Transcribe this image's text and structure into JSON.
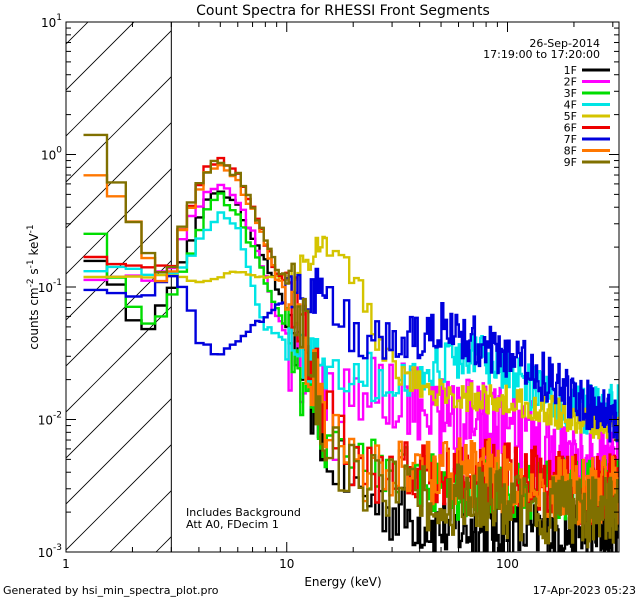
{
  "chart_data": {
    "type": "line",
    "title": "Count Spectra for RHESSI Front Segments",
    "xlabel": "Energy (keV)",
    "ylabel": "counts cm",
    "ylabel_sup1": "-2",
    "ylabel_mid": " s",
    "ylabel_sup2": "-1",
    "ylabel_end": " keV",
    "ylabel_sup3": "-1",
    "xscale": "log",
    "yscale": "log",
    "xlim": [
      1.0,
      320.0
    ],
    "ylim": [
      0.001,
      10.0
    ],
    "x_ticks": [
      {
        "value": 1,
        "label": "1"
      },
      {
        "value": 10,
        "label": "10"
      },
      {
        "value": 100,
        "label": "100"
      }
    ],
    "y_ticks": [
      {
        "value": 10,
        "base": "10",
        "exp": "1"
      },
      {
        "value": 1,
        "base": "10",
        "exp": "0"
      },
      {
        "value": 0.1,
        "base": "10",
        "exp": "-1"
      },
      {
        "value": 0.01,
        "base": "10",
        "exp": "-2"
      },
      {
        "value": 0.001,
        "base": "10",
        "exp": "-3"
      }
    ],
    "hatched_region_end_keV": 3.0,
    "date": "26-Sep-2014",
    "time_range": "17:19:00 to 17:20:00",
    "annotation_lines": [
      "Includes Background",
      "Att A0, FDecim 1"
    ],
    "series": [
      {
        "name": "1F",
        "color": "#000000",
        "anchors": [
          [
            1.2,
            0.28
          ],
          [
            1.4,
            0.15
          ],
          [
            1.7,
            0.1
          ],
          [
            2.2,
            0.04
          ],
          [
            2.6,
            0.07
          ],
          [
            3.2,
            0.12
          ],
          [
            3.8,
            0.25
          ],
          [
            4.5,
            0.5
          ],
          [
            5.0,
            0.55
          ],
          [
            6.0,
            0.4
          ],
          [
            7.5,
            0.2
          ],
          [
            9.0,
            0.1
          ],
          [
            10.5,
            0.05
          ],
          [
            12,
            0.02
          ],
          [
            15,
            0.006
          ],
          [
            20,
            0.003
          ],
          [
            30,
            0.002
          ],
          [
            50,
            0.0015
          ],
          [
            80,
            0.0015
          ],
          [
            120,
            0.0014
          ],
          [
            200,
            0.0014
          ],
          [
            300,
            0.0015
          ]
        ],
        "jitter": 0.25
      },
      {
        "name": "2F",
        "color": "#ff00ff",
        "anchors": [
          [
            1.2,
            0.12
          ],
          [
            1.6,
            0.12
          ],
          [
            2.2,
            0.12
          ],
          [
            3.0,
            0.12
          ],
          [
            3.5,
            0.3
          ],
          [
            4.5,
            0.55
          ],
          [
            5.0,
            0.6
          ],
          [
            6.0,
            0.45
          ],
          [
            7.0,
            0.25
          ],
          [
            8.5,
            0.08
          ],
          [
            10,
            0.04
          ],
          [
            12,
            0.02
          ],
          [
            16,
            0.01
          ],
          [
            25,
            0.02
          ],
          [
            40,
            0.012
          ],
          [
            60,
            0.01
          ],
          [
            100,
            0.008
          ],
          [
            150,
            0.006
          ],
          [
            200,
            0.004
          ],
          [
            300,
            0.004
          ]
        ],
        "jitter": 0.35
      },
      {
        "name": "3F",
        "color": "#00dd00",
        "anchors": [
          [
            1.2,
            0.33
          ],
          [
            1.4,
            0.25
          ],
          [
            1.8,
            0.1
          ],
          [
            2.2,
            0.06
          ],
          [
            2.6,
            0.05
          ],
          [
            3.0,
            0.08
          ],
          [
            3.8,
            0.2
          ],
          [
            4.5,
            0.45
          ],
          [
            5.0,
            0.5
          ],
          [
            6.0,
            0.35
          ],
          [
            7.5,
            0.15
          ],
          [
            9,
            0.07
          ],
          [
            10.5,
            0.04
          ],
          [
            12,
            0.015
          ],
          [
            15,
            0.006
          ],
          [
            20,
            0.005
          ],
          [
            30,
            0.004
          ],
          [
            50,
            0.003
          ],
          [
            80,
            0.003
          ],
          [
            150,
            0.003
          ],
          [
            300,
            0.003
          ]
        ],
        "jitter": 0.25
      },
      {
        "name": "4F",
        "color": "#00e5e5",
        "anchors": [
          [
            1.2,
            0.13
          ],
          [
            1.6,
            0.14
          ],
          [
            2.2,
            0.13
          ],
          [
            3.0,
            0.12
          ],
          [
            3.5,
            0.15
          ],
          [
            4.5,
            0.3
          ],
          [
            5.0,
            0.35
          ],
          [
            6.0,
            0.3
          ],
          [
            7.0,
            0.1
          ],
          [
            8.0,
            0.05
          ],
          [
            10,
            0.04
          ],
          [
            12,
            0.03
          ],
          [
            16,
            0.025
          ],
          [
            25,
            0.02
          ],
          [
            35,
            0.02
          ],
          [
            50,
            0.025
          ],
          [
            70,
            0.03
          ],
          [
            100,
            0.022
          ],
          [
            150,
            0.014
          ],
          [
            200,
            0.012
          ],
          [
            300,
            0.012
          ]
        ],
        "jitter": 0.2
      },
      {
        "name": "5F",
        "color": "#d4c400",
        "anchors": [
          [
            1.2,
            0.12
          ],
          [
            1.6,
            0.12
          ],
          [
            2.2,
            0.12
          ],
          [
            3.0,
            0.12
          ],
          [
            4.0,
            0.11
          ],
          [
            5.0,
            0.12
          ],
          [
            6.0,
            0.13
          ],
          [
            7.0,
            0.12
          ],
          [
            8.0,
            0.12
          ],
          [
            10,
            0.12
          ],
          [
            12,
            0.16
          ],
          [
            14,
            0.19
          ],
          [
            16,
            0.2
          ],
          [
            18,
            0.17
          ],
          [
            20,
            0.12
          ],
          [
            23,
            0.07
          ],
          [
            26,
            0.04
          ],
          [
            30,
            0.025
          ],
          [
            40,
            0.018
          ],
          [
            60,
            0.015
          ],
          [
            100,
            0.014
          ],
          [
            150,
            0.012
          ],
          [
            200,
            0.01
          ],
          [
            300,
            0.009
          ]
        ],
        "jitter": 0.12
      },
      {
        "name": "6F",
        "color": "#ee0000",
        "anchors": [
          [
            1.2,
            0.18
          ],
          [
            1.6,
            0.16
          ],
          [
            2.2,
            0.15
          ],
          [
            3.0,
            0.13
          ],
          [
            3.5,
            0.35
          ],
          [
            4.5,
            0.85
          ],
          [
            5.0,
            0.95
          ],
          [
            6.0,
            0.7
          ],
          [
            7.5,
            0.3
          ],
          [
            9,
            0.12
          ],
          [
            10.5,
            0.1
          ],
          [
            12,
            0.05
          ],
          [
            15,
            0.01
          ],
          [
            20,
            0.005
          ],
          [
            30,
            0.004
          ],
          [
            50,
            0.004
          ],
          [
            80,
            0.004
          ],
          [
            120,
            0.0035
          ],
          [
            200,
            0.003
          ],
          [
            300,
            0.003
          ]
        ],
        "jitter": 0.28
      },
      {
        "name": "7F",
        "color": "#0000dd",
        "anchors": [
          [
            1.2,
            0.1
          ],
          [
            1.6,
            0.09
          ],
          [
            2.2,
            0.08
          ],
          [
            3.0,
            0.12
          ],
          [
            3.5,
            0.1
          ],
          [
            4.0,
            0.04
          ],
          [
            5.0,
            0.03
          ],
          [
            6.0,
            0.04
          ],
          [
            8.0,
            0.06
          ],
          [
            10,
            0.08
          ],
          [
            12,
            0.09
          ],
          [
            14,
            0.09
          ],
          [
            16,
            0.08
          ],
          [
            18,
            0.06
          ],
          [
            22,
            0.04
          ],
          [
            30,
            0.035
          ],
          [
            40,
            0.04
          ],
          [
            50,
            0.05
          ],
          [
            60,
            0.045
          ],
          [
            80,
            0.035
          ],
          [
            100,
            0.03
          ],
          [
            150,
            0.02
          ],
          [
            200,
            0.015
          ],
          [
            300,
            0.01
          ]
        ],
        "jitter": 0.2
      },
      {
        "name": "8F",
        "color": "#ff7700",
        "anchors": [
          [
            1.2,
            0.85
          ],
          [
            1.5,
            0.6
          ],
          [
            1.8,
            0.45
          ],
          [
            2.2,
            0.25
          ],
          [
            2.6,
            0.1
          ],
          [
            3.0,
            0.12
          ],
          [
            3.5,
            0.35
          ],
          [
            4.5,
            0.8
          ],
          [
            5.0,
            0.9
          ],
          [
            6.0,
            0.65
          ],
          [
            7.5,
            0.3
          ],
          [
            9,
            0.12
          ],
          [
            10.5,
            0.09
          ],
          [
            12,
            0.04
          ],
          [
            15,
            0.008
          ],
          [
            20,
            0.004
          ],
          [
            30,
            0.004
          ],
          [
            50,
            0.004
          ],
          [
            80,
            0.004
          ],
          [
            120,
            0.003
          ],
          [
            200,
            0.003
          ],
          [
            300,
            0.003
          ]
        ],
        "jitter": 0.28
      },
      {
        "name": "9F",
        "color": "#807000",
        "anchors": [
          [
            1.2,
            1.7
          ],
          [
            1.5,
            1.2
          ],
          [
            1.8,
            0.5
          ],
          [
            2.2,
            0.25
          ],
          [
            2.6,
            0.12
          ],
          [
            3.0,
            0.13
          ],
          [
            3.5,
            0.4
          ],
          [
            4.5,
            0.8
          ],
          [
            5.0,
            0.9
          ],
          [
            6.0,
            0.7
          ],
          [
            7.5,
            0.3
          ],
          [
            9,
            0.14
          ],
          [
            10.5,
            0.1
          ],
          [
            12,
            0.05
          ],
          [
            15,
            0.008
          ],
          [
            20,
            0.004
          ],
          [
            30,
            0.003
          ],
          [
            50,
            0.0025
          ],
          [
            80,
            0.0025
          ],
          [
            120,
            0.0022
          ],
          [
            200,
            0.002
          ],
          [
            300,
            0.002
          ]
        ],
        "jitter": 0.28
      }
    ]
  },
  "footer": {
    "generated_by": "Generated by hsi_min_spectra_plot.pro",
    "timestamp": "17-Apr-2023 05:23"
  }
}
